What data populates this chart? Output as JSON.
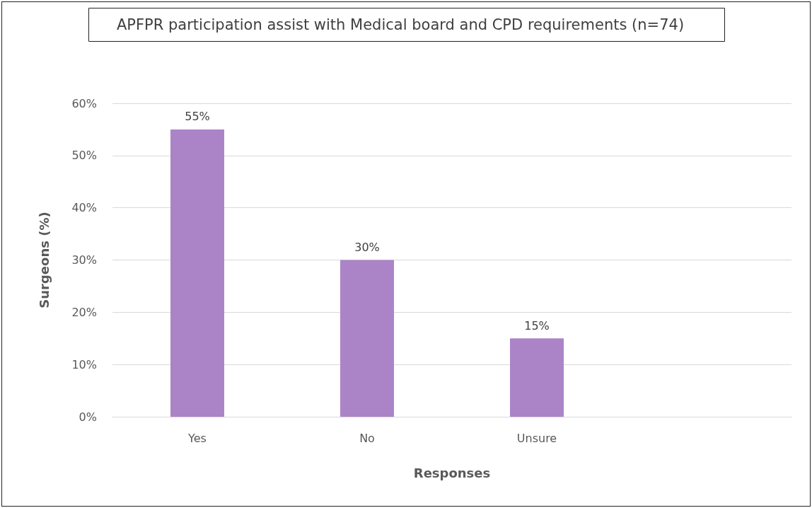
{
  "chart_data": {
    "type": "bar",
    "title": "APFPR participation assist with Medical board and CPD requirements (n=74)",
    "xlabel": "Responses",
    "ylabel": "Surgeons (%)",
    "categories": [
      "Yes",
      "No",
      "Unsure",
      null
    ],
    "values": [
      55,
      30,
      15,
      null
    ],
    "value_labels": [
      "55%",
      "30%",
      "15%",
      null
    ],
    "color": "#ab84c8",
    "ylim": [
      0,
      60
    ],
    "yticks": [
      {
        "value": 0,
        "label": "0%"
      },
      {
        "value": 10,
        "label": "10%"
      },
      {
        "value": 20,
        "label": "20%"
      },
      {
        "value": 30,
        "label": "30%"
      },
      {
        "value": 40,
        "label": "40%"
      },
      {
        "value": 50,
        "label": "50%"
      },
      {
        "value": 60,
        "label": "60%"
      }
    ],
    "grid": "y"
  }
}
